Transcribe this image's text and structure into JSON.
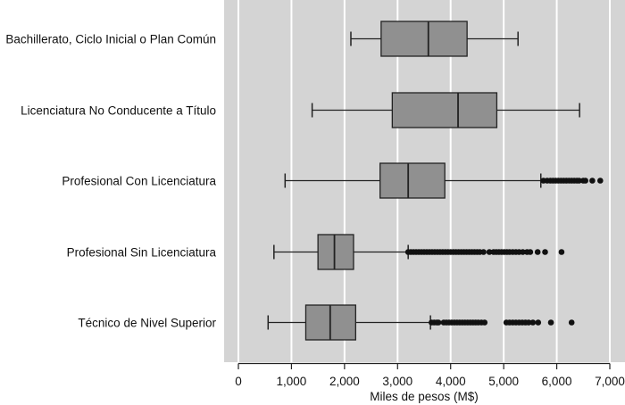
{
  "chart_data": {
    "type": "boxplot",
    "orientation": "horizontal",
    "title": "",
    "xlabel": "Miles de pesos (M$)",
    "ylabel": "",
    "xlim": [
      0,
      7000
    ],
    "x_ticks": [
      0,
      1000,
      2000,
      3000,
      4000,
      5000,
      6000,
      7000
    ],
    "x_tick_labels": [
      "0",
      "1,000",
      "2,000",
      "3,000",
      "4,000",
      "5,000",
      "6,000",
      "7,000"
    ],
    "grid": "vertical",
    "colors": {
      "panel": "#d4d4d4",
      "grid": "#ffffff",
      "box_fill": "#909090",
      "line": "#222222",
      "outlier": "#111111"
    },
    "categories": [
      "Bachillerato, Ciclo Inicial o Plan Común",
      "Licenciatura No Conducente a Título",
      "Profesional Con Licenciatura",
      "Profesional Sin Licenciatura",
      "Técnico de Nivel Superior"
    ],
    "series": [
      {
        "name": "Bachillerato, Ciclo Inicial o Plan Común",
        "min": 2120,
        "q1": 2690,
        "median": 3580,
        "q3": 4310,
        "max": 5270,
        "outliers": []
      },
      {
        "name": "Licenciatura No Conducente a Título",
        "min": 1390,
        "q1": 2900,
        "median": 4140,
        "q3": 4870,
        "max": 6430,
        "outliers": []
      },
      {
        "name": "Profesional Con Licenciatura",
        "min": 880,
        "q1": 2670,
        "median": 3200,
        "q3": 3890,
        "max": 5700,
        "outliers": [
          5750,
          5820,
          5880,
          5930,
          5980,
          6030,
          6080,
          6130,
          6180,
          6230,
          6280,
          6330,
          6380,
          6420,
          6500,
          6540,
          6670,
          6820
        ]
      },
      {
        "name": "Profesional Sin Licenciatura",
        "min": 670,
        "q1": 1500,
        "median": 1810,
        "q3": 2170,
        "max": 3200,
        "outliers": [
          3200,
          3250,
          3300,
          3350,
          3400,
          3450,
          3500,
          3550,
          3600,
          3650,
          3700,
          3750,
          3800,
          3850,
          3900,
          3950,
          4000,
          4050,
          4100,
          4150,
          4200,
          4250,
          4300,
          4350,
          4400,
          4450,
          4500,
          4550,
          4620,
          4730,
          4810,
          4860,
          4910,
          4960,
          5010,
          5060,
          5110,
          5170,
          5230,
          5290,
          5360,
          5440,
          5500,
          5640,
          5780,
          6090
        ]
      },
      {
        "name": "Técnico de Nivel Superior",
        "min": 560,
        "q1": 1270,
        "median": 1730,
        "q3": 2210,
        "max": 3620,
        "outliers": [
          3640,
          3690,
          3740,
          3770,
          3870,
          3920,
          3970,
          4020,
          4070,
          4120,
          4170,
          4220,
          4270,
          4320,
          4370,
          4420,
          4470,
          4520,
          4580,
          4640,
          5050,
          5110,
          5170,
          5230,
          5290,
          5350,
          5410,
          5470,
          5550,
          5650,
          5890,
          6280
        ]
      }
    ]
  }
}
